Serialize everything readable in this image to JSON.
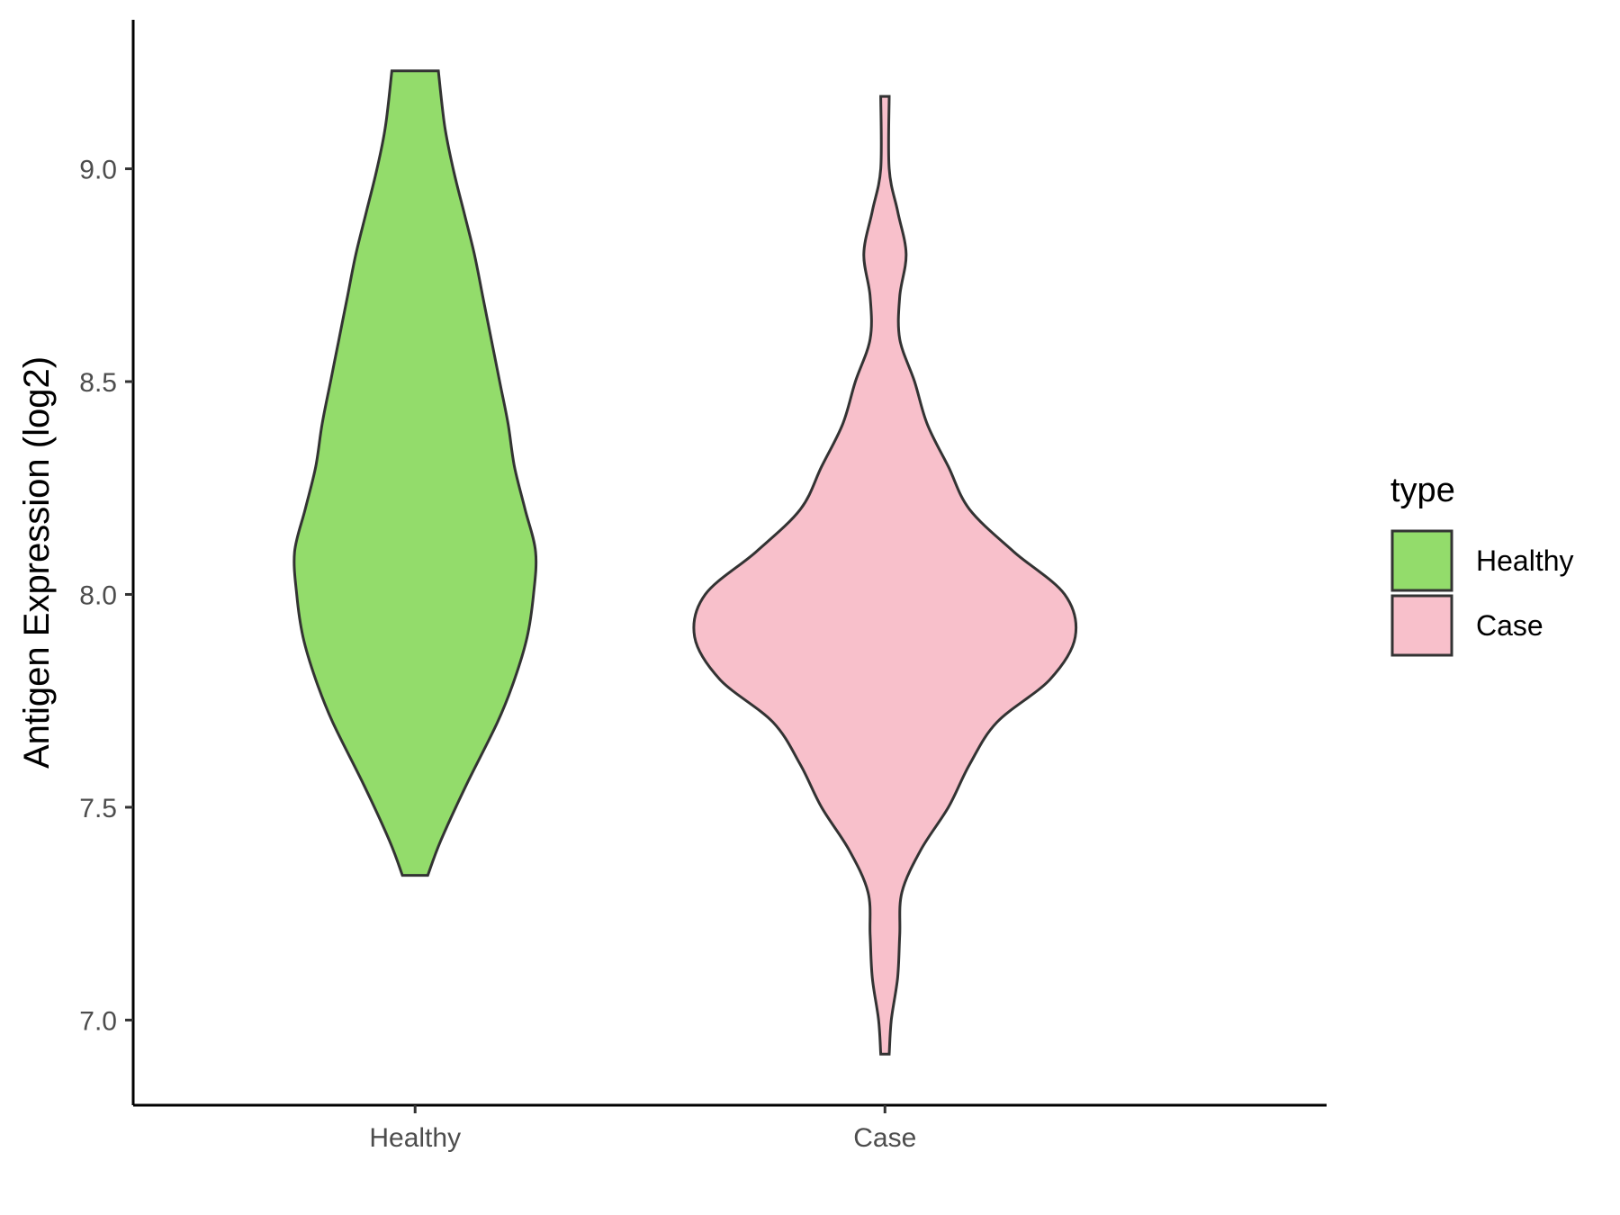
{
  "chart_data": {
    "type": "violin",
    "title": "",
    "xlabel": "",
    "ylabel": "Antigen Expression (log2)",
    "ylim": [
      6.8,
      9.35
    ],
    "y_ticks": [
      "7.0",
      "7.5",
      "8.0",
      "8.5",
      "9.0"
    ],
    "categories": [
      "Healthy",
      "Case"
    ],
    "legend": {
      "title": "type",
      "position": "right",
      "entries": [
        {
          "label": "Healthy",
          "color": "#93DC6B"
        },
        {
          "label": "Case",
          "color": "#F8C0CB"
        }
      ]
    },
    "series": [
      {
        "category": "Healthy",
        "color": "#93DC6B",
        "y_min": 7.34,
        "y_max": 9.23,
        "profile": [
          [
            7.34,
            0.06
          ],
          [
            7.42,
            0.12
          ],
          [
            7.55,
            0.24
          ],
          [
            7.7,
            0.39
          ],
          [
            7.8,
            0.47
          ],
          [
            7.9,
            0.53
          ],
          [
            8.0,
            0.56
          ],
          [
            8.1,
            0.57
          ],
          [
            8.2,
            0.52
          ],
          [
            8.3,
            0.47
          ],
          [
            8.4,
            0.44
          ],
          [
            8.5,
            0.4
          ],
          [
            8.6,
            0.36
          ],
          [
            8.7,
            0.32
          ],
          [
            8.8,
            0.28
          ],
          [
            8.9,
            0.23
          ],
          [
            9.0,
            0.18
          ],
          [
            9.1,
            0.14
          ],
          [
            9.23,
            0.11
          ]
        ]
      },
      {
        "category": "Case",
        "color": "#F8C0CB",
        "y_min": 6.92,
        "y_max": 9.17,
        "profile": [
          [
            6.92,
            0.02
          ],
          [
            7.0,
            0.03
          ],
          [
            7.1,
            0.06
          ],
          [
            7.2,
            0.07
          ],
          [
            7.3,
            0.08
          ],
          [
            7.4,
            0.17
          ],
          [
            7.5,
            0.3
          ],
          [
            7.6,
            0.4
          ],
          [
            7.7,
            0.53
          ],
          [
            7.8,
            0.78
          ],
          [
            7.9,
            0.9
          ],
          [
            8.0,
            0.85
          ],
          [
            8.1,
            0.61
          ],
          [
            8.2,
            0.4
          ],
          [
            8.3,
            0.3
          ],
          [
            8.4,
            0.2
          ],
          [
            8.5,
            0.14
          ],
          [
            8.6,
            0.07
          ],
          [
            8.7,
            0.07
          ],
          [
            8.8,
            0.1
          ],
          [
            8.9,
            0.06
          ],
          [
            9.0,
            0.02
          ],
          [
            9.17,
            0.02
          ]
        ]
      }
    ]
  }
}
